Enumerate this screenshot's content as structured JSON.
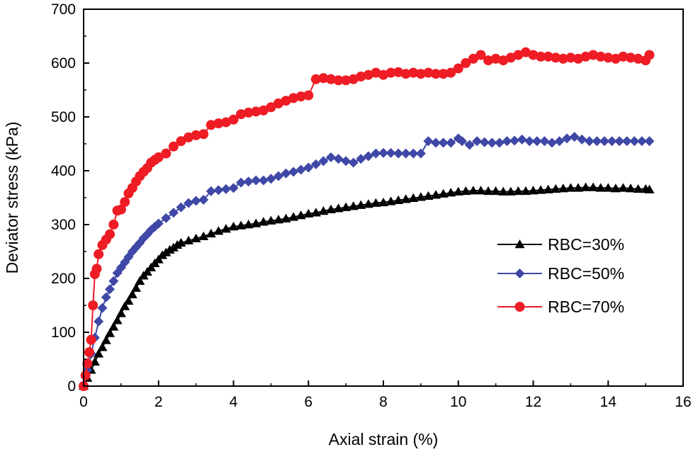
{
  "chart_data": {
    "type": "line",
    "title": "",
    "xlabel": "Axial strain (%)",
    "ylabel": "Deviator stress (kPa)",
    "xlim": [
      0,
      16
    ],
    "ylim": [
      0,
      700
    ],
    "xticks": [
      0,
      2,
      4,
      6,
      8,
      10,
      12,
      14,
      16
    ],
    "yticks": [
      0,
      100,
      200,
      300,
      400,
      500,
      600,
      700
    ],
    "legend_position": "center-right",
    "grid": false,
    "series": [
      {
        "name": "RBC=30%",
        "color": "#000000",
        "marker": "triangle",
        "x": [
          0,
          0.1,
          0.2,
          0.3,
          0.4,
          0.5,
          0.6,
          0.7,
          0.8,
          0.9,
          1.0,
          1.1,
          1.2,
          1.3,
          1.4,
          1.5,
          1.6,
          1.7,
          1.8,
          1.9,
          2.0,
          2.1,
          2.2,
          2.3,
          2.4,
          2.5,
          2.6,
          2.8,
          3.0,
          3.2,
          3.4,
          3.6,
          3.8,
          4.0,
          4.2,
          4.4,
          4.6,
          4.8,
          5.0,
          5.2,
          5.4,
          5.6,
          5.8,
          6.0,
          6.2,
          6.4,
          6.6,
          6.8,
          7.0,
          7.2,
          7.4,
          7.6,
          7.8,
          8.0,
          8.2,
          8.4,
          8.6,
          8.8,
          9.0,
          9.2,
          9.4,
          9.6,
          9.8,
          10.0,
          10.2,
          10.4,
          10.6,
          10.8,
          11.0,
          11.2,
          11.4,
          11.6,
          11.8,
          12.0,
          12.2,
          12.4,
          12.6,
          12.8,
          13.0,
          13.2,
          13.4,
          13.6,
          13.8,
          14.0,
          14.2,
          14.4,
          14.6,
          14.8,
          15.0,
          15.1
        ],
        "y": [
          0,
          15,
          30,
          45,
          60,
          72,
          85,
          98,
          110,
          122,
          135,
          148,
          158,
          170,
          182,
          195,
          205,
          212,
          220,
          228,
          235,
          243,
          248,
          253,
          257,
          262,
          266,
          270,
          274,
          278,
          283,
          288,
          292,
          296,
          298,
          300,
          302,
          305,
          307,
          309,
          311,
          314,
          317,
          320,
          322,
          325,
          328,
          330,
          332,
          334,
          336,
          338,
          340,
          341,
          343,
          345,
          347,
          349,
          351,
          353,
          355,
          357,
          359,
          361,
          362,
          363,
          363,
          362,
          362,
          361,
          361,
          362,
          362,
          363,
          364,
          365,
          366,
          367,
          368,
          368,
          369,
          369,
          368,
          368,
          367,
          368,
          367,
          366,
          366,
          365
        ]
      },
      {
        "name": "RBC=50%",
        "color": "#3f48a6",
        "marker": "diamond",
        "x": [
          0,
          0.1,
          0.2,
          0.3,
          0.4,
          0.5,
          0.6,
          0.7,
          0.8,
          0.9,
          1.0,
          1.1,
          1.2,
          1.3,
          1.4,
          1.5,
          1.6,
          1.7,
          1.8,
          1.9,
          2.0,
          2.2,
          2.4,
          2.6,
          2.8,
          3.0,
          3.2,
          3.4,
          3.6,
          3.8,
          4.0,
          4.2,
          4.4,
          4.6,
          4.8,
          5.0,
          5.2,
          5.4,
          5.6,
          5.8,
          6.0,
          6.2,
          6.4,
          6.6,
          6.8,
          7.0,
          7.2,
          7.4,
          7.6,
          7.8,
          8.0,
          8.2,
          8.4,
          8.6,
          8.8,
          9.0,
          9.2,
          9.4,
          9.6,
          9.8,
          10.0,
          10.1,
          10.3,
          10.5,
          10.7,
          10.9,
          11.1,
          11.3,
          11.5,
          11.7,
          11.9,
          12.1,
          12.3,
          12.5,
          12.7,
          12.9,
          13.1,
          13.3,
          13.5,
          13.7,
          13.9,
          14.1,
          14.3,
          14.5,
          14.7,
          14.9,
          15.1
        ],
        "y": [
          0,
          30,
          60,
          90,
          120,
          145,
          165,
          180,
          195,
          210,
          220,
          230,
          240,
          250,
          258,
          266,
          275,
          282,
          290,
          296,
          302,
          312,
          322,
          332,
          340,
          344,
          346,
          362,
          364,
          366,
          368,
          378,
          380,
          382,
          382,
          385,
          390,
          395,
          398,
          402,
          406,
          412,
          418,
          425,
          422,
          418,
          415,
          422,
          427,
          432,
          433,
          433,
          432,
          432,
          432,
          432,
          455,
          452,
          452,
          452,
          460,
          455,
          448,
          455,
          453,
          452,
          452,
          455,
          456,
          458,
          455,
          455,
          455,
          452,
          455,
          460,
          463,
          458,
          455,
          455,
          455,
          455,
          455,
          455,
          455,
          455,
          455
        ]
      },
      {
        "name": "RBC=70%",
        "color": "#ee1c24",
        "marker": "circle",
        "x": [
          0,
          0.05,
          0.1,
          0.15,
          0.2,
          0.25,
          0.3,
          0.35,
          0.4,
          0.5,
          0.6,
          0.7,
          0.8,
          0.9,
          1.0,
          1.1,
          1.2,
          1.3,
          1.4,
          1.5,
          1.6,
          1.7,
          1.8,
          1.9,
          2.0,
          2.2,
          2.4,
          2.6,
          2.8,
          3.0,
          3.2,
          3.4,
          3.6,
          3.8,
          4.0,
          4.2,
          4.4,
          4.6,
          4.8,
          5.0,
          5.2,
          5.4,
          5.6,
          5.8,
          6.0,
          6.2,
          6.4,
          6.6,
          6.8,
          7.0,
          7.2,
          7.4,
          7.6,
          7.8,
          8.0,
          8.2,
          8.4,
          8.6,
          8.8,
          9.0,
          9.2,
          9.4,
          9.6,
          9.8,
          10.0,
          10.2,
          10.4,
          10.6,
          10.8,
          11.0,
          11.2,
          11.4,
          11.6,
          11.8,
          12.0,
          12.2,
          12.4,
          12.6,
          12.8,
          13.0,
          13.2,
          13.4,
          13.6,
          13.8,
          14.0,
          14.2,
          14.4,
          14.6,
          14.8,
          15.0,
          15.1
        ],
        "y": [
          0,
          20,
          42,
          63,
          86,
          150,
          208,
          218,
          245,
          262,
          272,
          282,
          300,
          326,
          328,
          342,
          358,
          368,
          380,
          390,
          398,
          405,
          415,
          420,
          425,
          432,
          445,
          455,
          462,
          466,
          468,
          485,
          488,
          490,
          495,
          505,
          508,
          510,
          512,
          518,
          525,
          530,
          535,
          538,
          540,
          570,
          572,
          570,
          568,
          568,
          570,
          575,
          578,
          582,
          578,
          582,
          583,
          580,
          582,
          580,
          582,
          580,
          580,
          582,
          590,
          600,
          608,
          615,
          605,
          608,
          605,
          610,
          615,
          620,
          615,
          612,
          612,
          610,
          608,
          610,
          608,
          612,
          615,
          612,
          610,
          608,
          612,
          610,
          608,
          605,
          615
        ]
      }
    ]
  }
}
